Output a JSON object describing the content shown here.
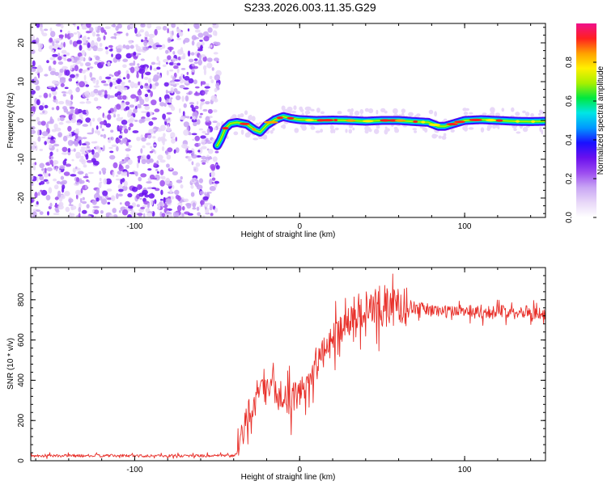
{
  "figure": {
    "title": "S233.2026.003.11.35.G29"
  },
  "colors": {
    "background": "#ffffff",
    "snr_line": "#e8302a",
    "axis": "#000000",
    "colormap": [
      "#ffffff",
      "#e8d8f8",
      "#c9a6f4",
      "#9c4cf0",
      "#6a10ee",
      "#1a10ff",
      "#0098ff",
      "#00e6e6",
      "#00e840",
      "#a8f000",
      "#fff000",
      "#ffa000",
      "#ff2020",
      "#f0108c"
    ]
  },
  "chart_data": [
    {
      "id": "spectrogram",
      "type": "heatmap",
      "title": "",
      "xlabel": "Height of straight line (km)",
      "ylabel": "Frequency (Hz)",
      "xlim": [
        -163,
        149
      ],
      "ylim": [
        -25,
        25
      ],
      "xticks": [
        -100,
        0,
        100
      ],
      "xtick_labels": [
        "-100",
        "0",
        "100"
      ],
      "yticks": [
        -20,
        -10,
        0,
        10,
        20
      ],
      "ytick_labels": [
        "-20",
        "-10",
        "0",
        "10",
        "20"
      ],
      "noise_region_x": [
        -163,
        -49
      ],
      "signal_track": {
        "x": [
          -50,
          -48,
          -45,
          -42,
          -38,
          -32,
          -27,
          -24,
          -20,
          -15,
          -10,
          -5,
          0,
          10,
          20,
          30,
          40,
          50,
          60,
          70,
          78,
          84,
          88,
          92,
          96,
          100,
          110,
          120,
          130,
          140,
          149
        ],
        "freq": [
          -6.5,
          -5,
          -2,
          -0.8,
          -0.5,
          -1,
          -2.5,
          -3,
          -1.2,
          0.2,
          1,
          0.5,
          0.2,
          0,
          0.1,
          0,
          -0.2,
          0,
          0,
          -0.3,
          -0.5,
          -1.5,
          -1.5,
          -1,
          -0.5,
          0,
          0.2,
          0,
          -0.2,
          -0.3,
          -0.2
        ]
      },
      "colorbar": {
        "label": "Normalized spectral amplitude",
        "range": [
          0,
          1
        ],
        "ticks": [
          0.0,
          0.2,
          0.4,
          0.6,
          0.8
        ],
        "tick_labels": [
          "0.0",
          "0.2",
          "0.4",
          "0.6",
          "0.8"
        ]
      }
    },
    {
      "id": "snr",
      "type": "line",
      "title": "",
      "xlabel": "Height of straight line (km)",
      "ylabel": "SNR (10 * v/v)",
      "xlim": [
        -163,
        149
      ],
      "ylim": [
        0,
        960
      ],
      "xticks": [
        -100,
        0,
        100
      ],
      "xtick_labels": [
        "-100",
        "0",
        "100"
      ],
      "yticks": [
        0,
        200,
        400,
        600,
        800
      ],
      "ytick_labels": [
        "0",
        "200",
        "400",
        "600",
        "800"
      ],
      "series": [
        {
          "name": "SNR",
          "x": [
            -163,
            -140,
            -120,
            -100,
            -80,
            -60,
            -48,
            -40,
            -37,
            -35,
            -33,
            -30,
            -25,
            -20,
            -15,
            -10,
            -5,
            0,
            5,
            10,
            15,
            20,
            25,
            30,
            35,
            40,
            45,
            50,
            55,
            60,
            65,
            70,
            80,
            90,
            100,
            110,
            120,
            130,
            140,
            149
          ],
          "values": [
            25,
            25,
            25,
            25,
            25,
            25,
            25,
            25,
            40,
            120,
            190,
            260,
            320,
            360,
            330,
            330,
            300,
            340,
            400,
            470,
            540,
            610,
            660,
            700,
            720,
            740,
            760,
            770,
            760,
            760,
            770,
            760,
            750,
            740,
            750,
            740,
            740,
            745,
            740,
            720
          ]
        }
      ]
    }
  ]
}
